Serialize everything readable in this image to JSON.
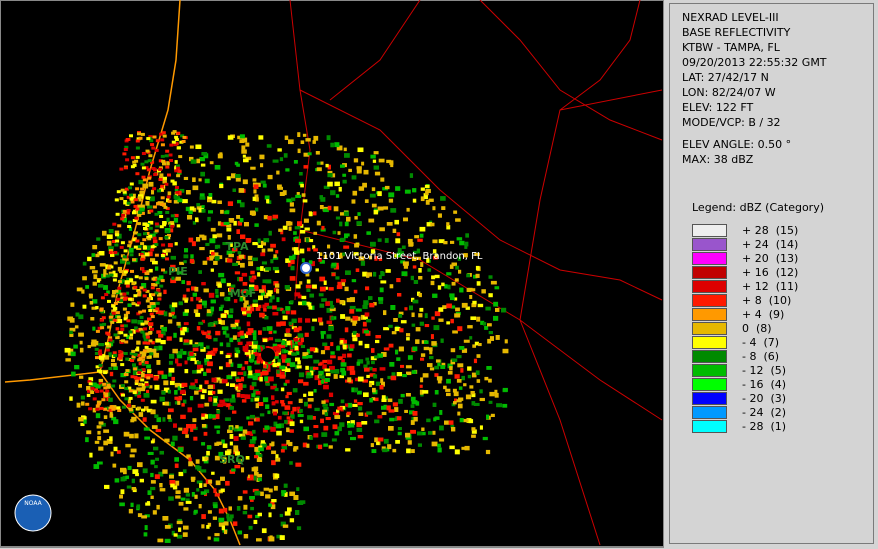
{
  "station": [
    "NEXRAD LEVEL-III",
    "BASE REFLECTIVITY",
    "KTBW - TAMPA, FL",
    "09/20/2013 22:55:32 GMT",
    "LAT: 27/42/17 N",
    "LON: 82/24/07 W",
    "ELEV: 122 FT",
    "MODE/VCP: B / 32"
  ],
  "scan": [
    "ELEV ANGLE: 0.50 °",
    "MAX: 38 dBZ"
  ],
  "legend": {
    "title": "Legend: dBZ (Category)",
    "entries": [
      {
        "label": "+ 28  (15)",
        "color": "#eeeeee"
      },
      {
        "label": "+ 24  (14)",
        "color": "#9955cc"
      },
      {
        "label": "+ 20  (13)",
        "color": "#ff00ff"
      },
      {
        "label": "+ 16  (12)",
        "color": "#c00000"
      },
      {
        "label": "+ 12  (11)",
        "color": "#dd0000"
      },
      {
        "label": "+ 8  (10)",
        "color": "#ff1a00"
      },
      {
        "label": "+ 4  (9)",
        "color": "#ff9900"
      },
      {
        "label": "0  (8)",
        "color": "#e6b800"
      },
      {
        "label": "- 4  (7)",
        "color": "#ffff00"
      },
      {
        "label": "- 8  (6)",
        "color": "#008a00"
      },
      {
        "label": "- 12  (5)",
        "color": "#00bb00"
      },
      {
        "label": "- 16  (4)",
        "color": "#00ff00"
      },
      {
        "label": "- 20  (3)",
        "color": "#0000ff"
      },
      {
        "label": "- 24  (2)",
        "color": "#0099ff"
      },
      {
        "label": "- 28  (1)",
        "color": "#00ffff"
      }
    ]
  },
  "map": {
    "labels": [
      "TPA",
      "PIE",
      "MCF",
      "SRQ"
    ],
    "location": "1101 Victoria Street, Brandon, FL",
    "logo": "NOAA"
  }
}
